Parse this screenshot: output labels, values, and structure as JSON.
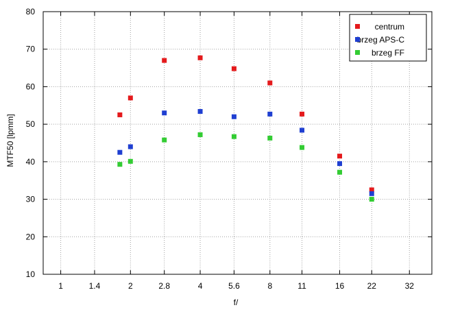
{
  "chart_data": {
    "type": "scatter",
    "title": "",
    "xlabel": "f/",
    "ylabel": "MTF50 [lpmm]",
    "x_scale": "log2",
    "xlim": [
      0.84,
      40
    ],
    "ylim": [
      10,
      80
    ],
    "x_ticks": [
      1,
      1.4,
      2,
      2.8,
      4,
      5.6,
      8,
      11,
      16,
      22,
      32
    ],
    "x_tick_labels": [
      "1",
      "1.4",
      "2",
      "2.8",
      "4",
      "5.6",
      "8",
      "11",
      "16",
      "22",
      "32"
    ],
    "y_ticks": [
      10,
      20,
      30,
      40,
      50,
      60,
      70,
      80
    ],
    "y_tick_labels": [
      "10",
      "20",
      "30",
      "40",
      "50",
      "60",
      "70",
      "80"
    ],
    "grid": true,
    "legend_position": "top-right",
    "series": [
      {
        "name": "centrum",
        "color": "#e41a1c",
        "x": [
          1.8,
          2,
          2.8,
          4,
          5.6,
          8,
          11,
          16,
          22
        ],
        "y": [
          52.5,
          57,
          67,
          67.7,
          64.8,
          61,
          52.7,
          41.5,
          32.5
        ]
      },
      {
        "name": "brzeg APS-C",
        "color": "#1f3fd1",
        "x": [
          1.8,
          2,
          2.8,
          4,
          5.6,
          8,
          11,
          16,
          22
        ],
        "y": [
          42.5,
          44,
          53,
          53.4,
          52,
          52.7,
          48.4,
          39.5,
          31.5
        ]
      },
      {
        "name": "brzeg FF",
        "color": "#33cc33",
        "x": [
          1.8,
          2,
          2.8,
          4,
          5.6,
          8,
          11,
          16,
          22
        ],
        "y": [
          39.3,
          40.1,
          45.8,
          47.2,
          46.7,
          46.3,
          43.8,
          37.2,
          30
        ]
      }
    ]
  }
}
